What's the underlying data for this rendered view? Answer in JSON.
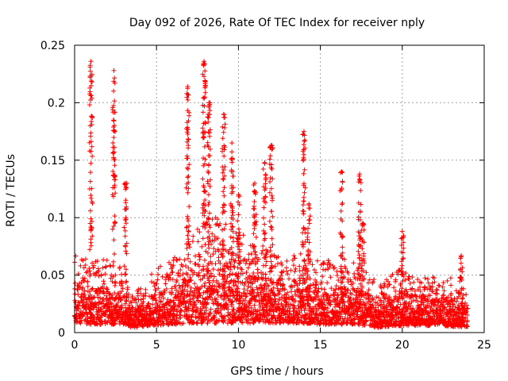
{
  "chart_data": {
    "type": "scatter",
    "title": "Day 092 of 2026, Rate Of TEC Index for receiver nply",
    "xlabel": "GPS time / hours",
    "ylabel": "ROTI / TECUs",
    "xlim": [
      0,
      25
    ],
    "ylim": [
      0,
      0.25
    ],
    "xticks": [
      0,
      5,
      10,
      15,
      20,
      25
    ],
    "yticks": [
      0,
      0.05,
      0.1,
      0.15,
      0.2,
      0.25
    ],
    "xtick_labels": [
      "0",
      "5",
      "10",
      "15",
      "20",
      "25"
    ],
    "ytick_labels": [
      "0",
      "0.05",
      "0.1",
      "0.15",
      "0.2",
      "0.25"
    ],
    "grid": true,
    "marker": "+",
    "color": "#ff0000",
    "data_range_hours": [
      0,
      24
    ],
    "band": [
      [
        0.0,
        0.008,
        0.045
      ],
      [
        1.0,
        0.007,
        0.04
      ],
      [
        2.0,
        0.007,
        0.04
      ],
      [
        3.0,
        0.007,
        0.035
      ],
      [
        3.5,
        0.004,
        0.02
      ],
      [
        4.0,
        0.005,
        0.025
      ],
      [
        5.0,
        0.006,
        0.035
      ],
      [
        6.0,
        0.007,
        0.04
      ],
      [
        7.0,
        0.008,
        0.055
      ],
      [
        8.0,
        0.008,
        0.06
      ],
      [
        9.0,
        0.008,
        0.065
      ],
      [
        10.0,
        0.008,
        0.055
      ],
      [
        11.0,
        0.008,
        0.05
      ],
      [
        12.0,
        0.008,
        0.045
      ],
      [
        13.0,
        0.008,
        0.045
      ],
      [
        14.0,
        0.008,
        0.045
      ],
      [
        15.0,
        0.007,
        0.04
      ],
      [
        16.0,
        0.007,
        0.04
      ],
      [
        17.0,
        0.007,
        0.04
      ],
      [
        18.0,
        0.006,
        0.035
      ],
      [
        18.5,
        0.004,
        0.025
      ],
      [
        19.0,
        0.005,
        0.03
      ],
      [
        20.0,
        0.006,
        0.035
      ],
      [
        21.0,
        0.006,
        0.032
      ],
      [
        22.0,
        0.006,
        0.03
      ],
      [
        23.0,
        0.005,
        0.03
      ],
      [
        24.0,
        0.005,
        0.025
      ]
    ],
    "spikes": [
      {
        "t": 1.0,
        "peak": 0.236
      },
      {
        "t": 2.4,
        "peak": 0.228
      },
      {
        "t": 3.1,
        "peak": 0.13
      },
      {
        "t": 6.9,
        "peak": 0.214
      },
      {
        "t": 7.9,
        "peak": 0.236
      },
      {
        "t": 8.2,
        "peak": 0.2
      },
      {
        "t": 9.1,
        "peak": 0.19
      },
      {
        "t": 9.6,
        "peak": 0.165
      },
      {
        "t": 10.0,
        "peak": 0.12
      },
      {
        "t": 11.0,
        "peak": 0.13
      },
      {
        "t": 11.6,
        "peak": 0.148
      },
      {
        "t": 12.0,
        "peak": 0.163
      },
      {
        "t": 14.0,
        "peak": 0.175
      },
      {
        "t": 14.3,
        "peak": 0.112
      },
      {
        "t": 16.3,
        "peak": 0.14
      },
      {
        "t": 17.4,
        "peak": 0.138
      },
      {
        "t": 17.6,
        "peak": 0.095
      },
      {
        "t": 20.0,
        "peak": 0.088
      },
      {
        "t": 23.6,
        "peak": 0.067
      }
    ]
  }
}
